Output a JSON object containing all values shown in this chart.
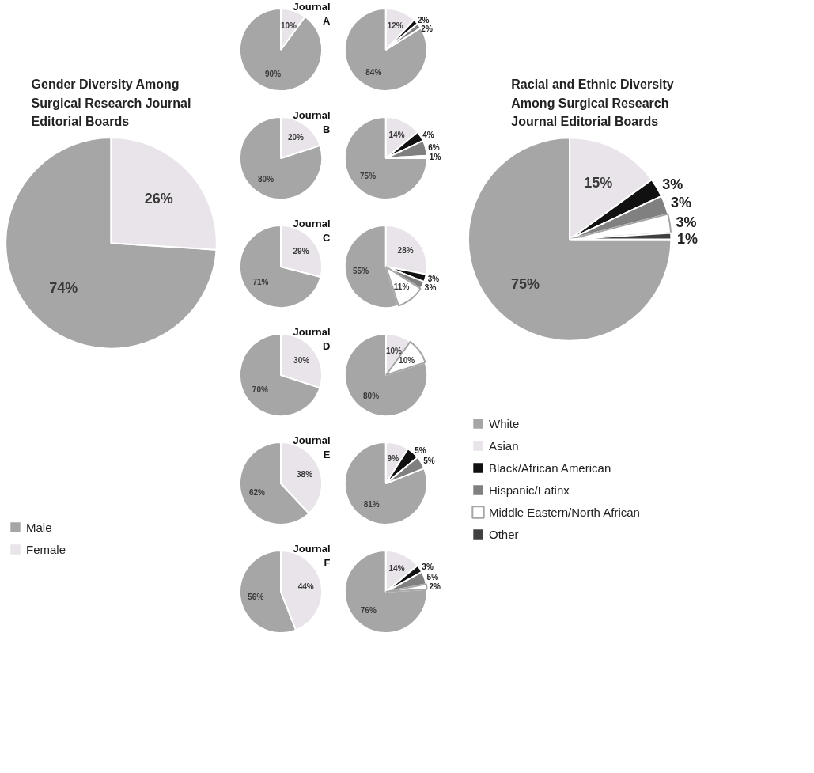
{
  "chart_data": [
    {
      "type": "pie",
      "title": "Gender Diversity Among Surgical Research Journal Editorial Boards",
      "categories": [
        "Male",
        "Female"
      ],
      "values": [
        74,
        26
      ],
      "colors": [
        "#a6a6a6",
        "#e9e4e9"
      ],
      "value_labels": [
        "74%",
        "26%"
      ],
      "legend": "bottom"
    },
    {
      "type": "pie",
      "title": "Journal A",
      "categories": [
        null,
        null
      ],
      "values": [
        90,
        10
      ],
      "colors": [
        "#a6a6a6",
        "#e9e4e9"
      ],
      "value_labels": [
        "90%",
        "10%"
      ]
    },
    {
      "type": "pie",
      "categories": [
        null,
        null,
        null,
        null
      ],
      "values": [
        84,
        12,
        2,
        2
      ],
      "colors": [
        "#a6a6a6",
        "#e9e4e9",
        "#111111",
        "#808080"
      ],
      "value_labels": [
        "84%",
        "12%",
        "2%",
        "2%"
      ]
    },
    {
      "type": "pie",
      "title": "Journal B",
      "categories": [
        null,
        null
      ],
      "values": [
        80,
        20
      ],
      "colors": [
        "#a6a6a6",
        "#e9e4e9"
      ],
      "value_labels": [
        "80%",
        "20%"
      ]
    },
    {
      "type": "pie",
      "categories": [
        null,
        null,
        null,
        null,
        null
      ],
      "values": [
        75,
        14,
        4,
        6,
        1
      ],
      "colors": [
        "#a6a6a6",
        "#e9e4e9",
        "#111111",
        "#808080",
        "#404040"
      ],
      "value_labels": [
        "75%",
        "14%",
        "4%",
        "6%",
        "1%"
      ]
    },
    {
      "type": "pie",
      "title": "Journal C",
      "categories": [
        null,
        null
      ],
      "values": [
        71,
        29
      ],
      "colors": [
        "#a6a6a6",
        "#e9e4e9"
      ],
      "value_labels": [
        "71%",
        "29%"
      ]
    },
    {
      "type": "pie",
      "categories": [
        null,
        null,
        null,
        null,
        null
      ],
      "values": [
        55,
        28,
        3,
        3,
        11
      ],
      "colors": [
        "#a6a6a6",
        "#e9e4e9",
        "#111111",
        "#808080",
        "#ffffff"
      ],
      "value_labels": [
        "55%",
        "28%",
        "3%",
        "3%",
        "11%"
      ]
    },
    {
      "type": "pie",
      "title": "Journal D",
      "categories": [
        null,
        null
      ],
      "values": [
        70,
        30
      ],
      "colors": [
        "#a6a6a6",
        "#e9e4e9"
      ],
      "value_labels": [
        "70%",
        "30%"
      ]
    },
    {
      "type": "pie",
      "categories": [
        null,
        null,
        null
      ],
      "values": [
        80,
        10,
        10
      ],
      "colors": [
        "#a6a6a6",
        "#e9e4e9",
        "#ffffff"
      ],
      "value_labels": [
        "80%",
        "10%",
        "10%"
      ]
    },
    {
      "type": "pie",
      "title": "Journal E",
      "categories": [
        null,
        null
      ],
      "values": [
        62,
        38
      ],
      "colors": [
        "#a6a6a6",
        "#e9e4e9"
      ],
      "value_labels": [
        "62%",
        "38%"
      ]
    },
    {
      "type": "pie",
      "categories": [
        null,
        null,
        null,
        null
      ],
      "values": [
        81,
        9,
        5,
        5
      ],
      "colors": [
        "#a6a6a6",
        "#e9e4e9",
        "#111111",
        "#808080"
      ],
      "value_labels": [
        "81%",
        "9%",
        "5%",
        "5%"
      ]
    },
    {
      "type": "pie",
      "title": "Journal F",
      "categories": [
        null,
        null
      ],
      "values": [
        56,
        44
      ],
      "colors": [
        "#a6a6a6",
        "#e9e4e9"
      ],
      "value_labels": [
        "56%",
        "44%"
      ]
    },
    {
      "type": "pie",
      "categories": [
        null,
        null,
        null,
        null,
        null
      ],
      "values": [
        76,
        14,
        3,
        5,
        2
      ],
      "colors": [
        "#a6a6a6",
        "#e9e4e9",
        "#111111",
        "#808080",
        "#ffffff"
      ],
      "value_labels": [
        "76%",
        "14%",
        "3%",
        "5%",
        "2%"
      ]
    },
    {
      "type": "pie",
      "title": "Racial and Ethnic Diversity Among Surgical Research Journal Editorial Boards",
      "categories": [
        "White",
        "Asian",
        "Black/African American",
        "Hispanic/Latinx",
        "Middle Eastern/North African",
        "Other"
      ],
      "values": [
        75,
        15,
        3,
        3,
        3,
        1
      ],
      "colors": [
        "#a6a6a6",
        "#e9e4e9",
        "#111111",
        "#808080",
        "#ffffff",
        "#404040"
      ],
      "value_labels": [
        "75%",
        "15%",
        "3%",
        "3%",
        "3%",
        "1%"
      ],
      "legend": "bottom"
    }
  ]
}
